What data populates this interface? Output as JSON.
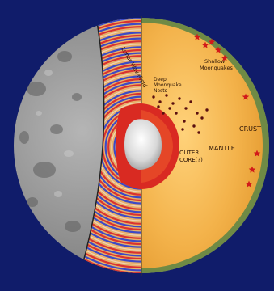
{
  "labels": {
    "wavefield": "Lunar Wavefield",
    "deep_nests_line1": "Deep",
    "deep_nests_line2": "Moonquake",
    "deep_nests_line3": "Nests",
    "shallow_line1": "Shallow",
    "shallow_line2": "Moonquakes",
    "crust": "CRUST",
    "mantle": "MANTLE",
    "outer_core_line1": "OUTER",
    "outer_core_line2": "CORE(?)"
  },
  "colors": {
    "background": "#101c6a",
    "crust": "#6f8a45",
    "mantle": "#f3b24a",
    "outer_core": "#d92a22",
    "inner_core": "#d8d8d8",
    "surface": "#8a8a8a",
    "wave_red": "#d8262a",
    "wave_blue": "#2a3fd0",
    "quake_marker": "#d21a1a",
    "deep_quake_dot": "#5a0f0f",
    "label_text": "#2a1205"
  },
  "markers": {
    "shallow_moonquake": "star-icon",
    "deep_moonquake": "dot-icon"
  }
}
